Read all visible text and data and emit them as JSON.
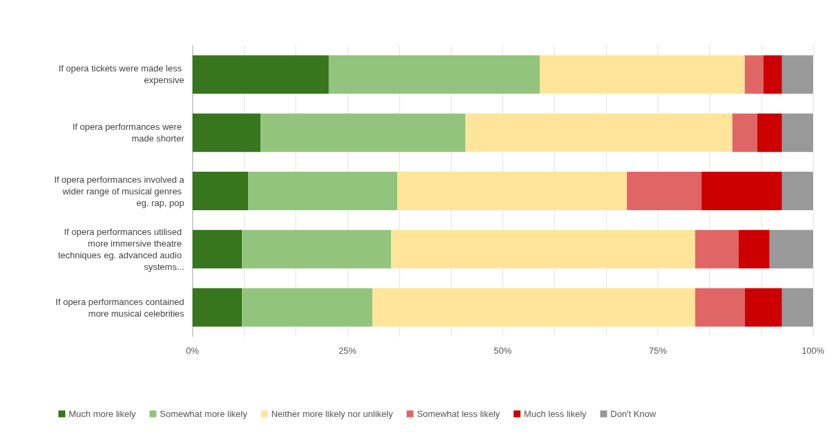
{
  "chart_data": {
    "type": "bar",
    "orientation": "horizontal",
    "stacked": true,
    "categories": [
      "If opera tickets were made less expensive",
      "If opera performances were made shorter",
      "If opera performances involved a wider range of musical genres eg. rap, pop",
      "If opera performances utilised more immersive theatre techniques eg. advanced audio systems...",
      "If opera performances contained more musical celebrities"
    ],
    "series": [
      {
        "name": "Much more likely",
        "color": "#38761d",
        "values": [
          22,
          11,
          9,
          8,
          8
        ]
      },
      {
        "name": "Somewhat more likely",
        "color": "#93c47d",
        "values": [
          34,
          33,
          24,
          24,
          21
        ]
      },
      {
        "name": "Neither more likely nor unlikely",
        "color": "#ffe599",
        "values": [
          33,
          43,
          37,
          49,
          52
        ]
      },
      {
        "name": "Somewhat less likely",
        "color": "#e06666",
        "values": [
          3,
          4,
          12,
          7,
          8
        ]
      },
      {
        "name": "Much less likely",
        "color": "#cc0000",
        "values": [
          3,
          4,
          13,
          5,
          6
        ]
      },
      {
        "name": "Don't Know",
        "color": "#999999",
        "values": [
          5,
          5,
          5,
          7,
          5
        ]
      }
    ],
    "xlim": [
      0,
      100
    ],
    "xticks": [
      {
        "value": 0,
        "label": "0%"
      },
      {
        "value": 8.33,
        "label": null
      },
      {
        "value": 16.67,
        "label": null
      },
      {
        "value": 25,
        "label": "25%"
      },
      {
        "value": 33.33,
        "label": null
      },
      {
        "value": 41.67,
        "label": null
      },
      {
        "value": 50,
        "label": "50%"
      },
      {
        "value": 58.33,
        "label": null
      },
      {
        "value": 66.67,
        "label": null
      },
      {
        "value": 75,
        "label": "75%"
      },
      {
        "value": 83.33,
        "label": null
      },
      {
        "value": 91.67,
        "label": null
      },
      {
        "value": 100,
        "label": "100%"
      }
    ],
    "grid": "x",
    "legend": "bottom"
  }
}
